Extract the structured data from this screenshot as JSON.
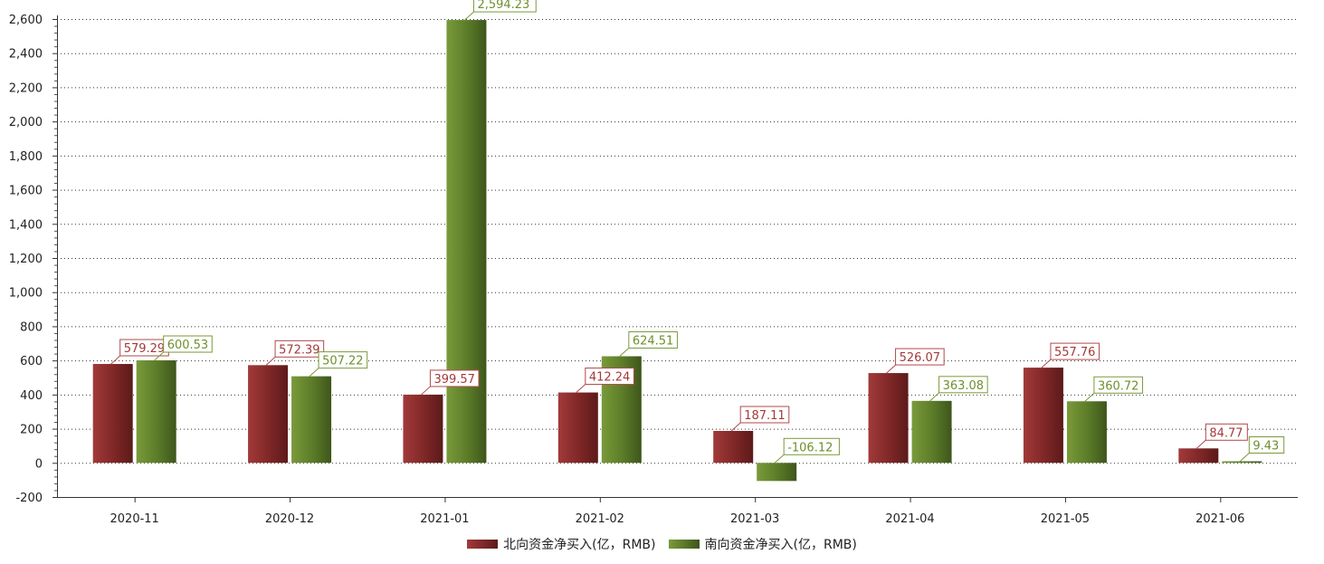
{
  "chart_data": {
    "type": "bar",
    "categories": [
      "2020-11",
      "2020-12",
      "2021-01",
      "2021-02",
      "2021-03",
      "2021-04",
      "2021-05",
      "2021-06"
    ],
    "series": [
      {
        "name": "北向资金净买入(亿，RMB)",
        "values": [
          579.29,
          572.39,
          399.57,
          412.24,
          187.11,
          526.07,
          557.76,
          84.77
        ],
        "labels": [
          "579.29",
          "572.39",
          "399.57",
          "412.24",
          "187.11",
          "526.07",
          "557.76",
          "84.77"
        ],
        "color": "#8b2a2a"
      },
      {
        "name": "南向资金净买入(亿，RMB)",
        "values": [
          600.53,
          507.22,
          2594.23,
          624.51,
          -106.12,
          363.08,
          360.72,
          9.43
        ],
        "labels": [
          "600.53",
          "507.22",
          "2,594.23",
          "624.51",
          "-106.12",
          "363.08",
          "360.72",
          "9.43"
        ],
        "color": "#5f7f2a"
      }
    ],
    "ylim": [
      -200,
      2600
    ],
    "yticks": [
      -200,
      0,
      200,
      400,
      600,
      800,
      1000,
      1200,
      1400,
      1600,
      1800,
      2000,
      2200,
      2400,
      2600
    ],
    "ytick_labels": [
      "-200",
      "0",
      "200",
      "400",
      "600",
      "800",
      "1,000",
      "1,200",
      "1,400",
      "1,600",
      "1,800",
      "2,000",
      "2,200",
      "2,400",
      "2,600"
    ],
    "grid": true,
    "legend_position": "bottom-center"
  }
}
